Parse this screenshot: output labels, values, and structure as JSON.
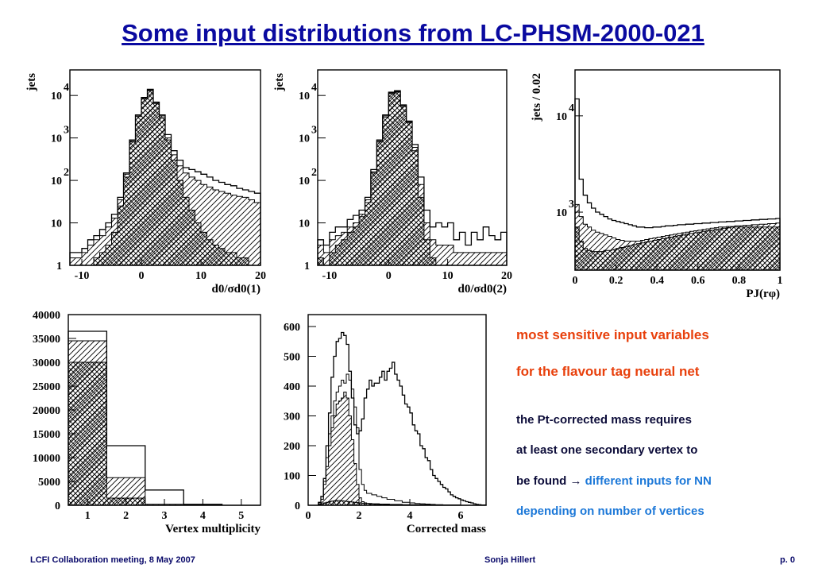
{
  "title": "Some input distributions from LC-PHSM-2000-021",
  "colors": {
    "title": "#0a0aa0",
    "highlight": "#e8400c",
    "body_text": "#0d0d3a",
    "link_blue": "#1c78d8"
  },
  "text": {
    "line1": "most sensitive input variables",
    "line2": "for the flavour tag neural net",
    "line3": "the Pt-corrected mass requires",
    "line4": "at least one secondary vertex to",
    "line5_a": "be found ",
    "line5_arrow": "→",
    "line5_b": " different inputs for NN",
    "line6": "depending on number of vertices"
  },
  "footer": {
    "left": "LCFI Collaboration meeting, 8 May 2007",
    "center": "Sonja Hillert",
    "right": "p. 0"
  },
  "chart_data": [
    {
      "type": "histogram",
      "ylabel": "jets",
      "xlabel": "d0/σd0(1)",
      "yscale": "log",
      "ylim": [
        1,
        40000
      ],
      "xlim": [
        -12,
        20
      ],
      "xticks": [
        -10,
        0,
        10,
        20
      ],
      "yticks": [
        {
          "v": 1,
          "label": "1",
          "exp": ""
        },
        {
          "v": 10,
          "label": "10",
          "exp": ""
        },
        {
          "v": 100,
          "label": "10",
          "exp": "2"
        },
        {
          "v": 1000,
          "label": "10",
          "exp": "3"
        },
        {
          "v": 10000,
          "label": "10",
          "exp": "4"
        }
      ],
      "bin_edges": [
        -12,
        -11,
        -10,
        -9,
        -8,
        -7,
        -6,
        -5,
        -4,
        -3,
        -2,
        -1,
        0,
        1,
        2,
        3,
        4,
        5,
        6,
        7,
        8,
        9,
        10,
        11,
        12,
        13,
        14,
        15,
        16,
        17,
        18,
        19,
        20
      ],
      "series": [
        {
          "style": "outline",
          "values": [
            2,
            2,
            2.5,
            4,
            5,
            7,
            10,
            16,
            40,
            150,
            900,
            3500,
            9000,
            14000,
            7000,
            3500,
            1200,
            500,
            300,
            200,
            180,
            160,
            140,
            120,
            100,
            90,
            80,
            75,
            65,
            60,
            55,
            50
          ]
        },
        {
          "style": "hatch-diag",
          "values": [
            1.5,
            1.5,
            2,
            3,
            4,
            5,
            8,
            13,
            35,
            140,
            850,
            3400,
            8800,
            13500,
            6800,
            3300,
            1000,
            400,
            220,
            150,
            120,
            100,
            80,
            70,
            60,
            55,
            50,
            45,
            42,
            40,
            35,
            30
          ]
        },
        {
          "style": "cross-hatch",
          "values": [
            1,
            1,
            1,
            1,
            1.5,
            2,
            3,
            6,
            25,
            120,
            800,
            3200,
            8500,
            13000,
            6500,
            3000,
            900,
            300,
            100,
            40,
            20,
            10,
            6,
            4,
            3,
            2.5,
            2,
            2,
            1.5,
            1.5,
            1,
            1
          ]
        }
      ]
    },
    {
      "type": "histogram",
      "ylabel": "jets",
      "xlabel": "d0/σd0(2)",
      "yscale": "log",
      "ylim": [
        1,
        40000
      ],
      "xlim": [
        -12,
        20
      ],
      "xticks": [
        -10,
        0,
        10,
        20
      ],
      "yticks": [
        {
          "v": 1,
          "label": "1",
          "exp": ""
        },
        {
          "v": 10,
          "label": "10",
          "exp": ""
        },
        {
          "v": 100,
          "label": "10",
          "exp": "2"
        },
        {
          "v": 1000,
          "label": "10",
          "exp": "3"
        },
        {
          "v": 10000,
          "label": "10",
          "exp": "4"
        }
      ],
      "bin_edges": [
        -12,
        -11,
        -10,
        -9,
        -8,
        -7,
        -6,
        -5,
        -4,
        -3,
        -2,
        -1,
        0,
        1,
        2,
        3,
        4,
        5,
        6,
        7,
        8,
        9,
        10,
        11,
        12,
        13,
        14,
        15,
        16,
        17,
        18,
        19,
        20
      ],
      "series": [
        {
          "style": "outline",
          "values": [
            4,
            3,
            6,
            8,
            8,
            12,
            15,
            20,
            40,
            180,
            900,
            3500,
            12000,
            13000,
            6000,
            2500,
            700,
            120,
            20,
            8,
            10,
            8,
            10,
            4,
            6,
            3,
            6,
            4,
            8,
            5,
            4,
            6
          ]
        },
        {
          "style": "hatch-diag",
          "values": [
            3,
            2,
            4,
            5,
            6,
            8,
            10,
            16,
            35,
            160,
            850,
            3300,
            11500,
            12500,
            5800,
            2400,
            600,
            80,
            10,
            4,
            3,
            3,
            3,
            2,
            2,
            2,
            2,
            2,
            2,
            2,
            2,
            2
          ]
        },
        {
          "style": "cross-hatch",
          "values": [
            1.5,
            1,
            2,
            3,
            4,
            6,
            8,
            14,
            30,
            150,
            800,
            3100,
            11000,
            12000,
            5500,
            2300,
            500,
            40,
            4,
            1.5,
            1,
            1,
            1,
            1,
            1,
            1,
            1,
            1,
            1,
            1,
            1,
            1
          ]
        }
      ]
    },
    {
      "type": "histogram",
      "ylabel": "jets / 0.02",
      "xlabel": "PJ(rφ)",
      "yscale": "log",
      "ylim": [
        250,
        30000
      ],
      "xlim": [
        0,
        1
      ],
      "xticks": [
        0,
        0.2,
        0.4,
        0.6,
        0.8,
        1
      ],
      "yticks": [
        {
          "v": 1000,
          "label": "10",
          "exp": "3"
        },
        {
          "v": 10000,
          "label": "10",
          "exp": "4"
        }
      ],
      "bin_edges": [
        0,
        0.02,
        0.04,
        0.06,
        0.08,
        0.1,
        0.12,
        0.14,
        0.16,
        0.18,
        0.2,
        0.22,
        0.24,
        0.26,
        0.28,
        0.3,
        0.32,
        0.34,
        0.36,
        0.38,
        0.4,
        0.42,
        0.44,
        0.46,
        0.48,
        0.5,
        0.52,
        0.54,
        0.56,
        0.58,
        0.6,
        0.62,
        0.64,
        0.66,
        0.68,
        0.7,
        0.72,
        0.74,
        0.76,
        0.78,
        0.8,
        0.82,
        0.84,
        0.86,
        0.88,
        0.9,
        0.92,
        0.94,
        0.96,
        0.98,
        1.0
      ],
      "series": [
        {
          "style": "outline",
          "values": [
            15000,
            2200,
            1500,
            1250,
            1100,
            1000,
            950,
            900,
            850,
            820,
            800,
            780,
            760,
            740,
            720,
            700,
            700,
            690,
            690,
            700,
            700,
            710,
            720,
            720,
            730,
            740,
            740,
            750,
            750,
            760,
            760,
            770,
            770,
            780,
            780,
            790,
            790,
            800,
            800,
            810,
            810,
            820,
            820,
            830,
            830,
            840,
            840,
            850,
            850,
            860
          ]
        },
        {
          "style": "hatch-diag",
          "values": [
            1200,
            900,
            750,
            700,
            650,
            620,
            600,
            580,
            560,
            540,
            520,
            510,
            500,
            500,
            500,
            500,
            510,
            520,
            530,
            540,
            550,
            560,
            570,
            580,
            590,
            600,
            610,
            620,
            630,
            640,
            650,
            660,
            670,
            680,
            690,
            700,
            700,
            710,
            710,
            720,
            720,
            730,
            730,
            740,
            740,
            750,
            750,
            760,
            760,
            770
          ]
        },
        {
          "style": "cross-hatch",
          "values": [
            700,
            500,
            420,
            400,
            390,
            390,
            390,
            400,
            400,
            410,
            420,
            430,
            440,
            450,
            460,
            470,
            480,
            490,
            500,
            510,
            520,
            530,
            540,
            550,
            560,
            570,
            580,
            590,
            600,
            610,
            620,
            630,
            640,
            650,
            660,
            670,
            680,
            690,
            700,
            700,
            700,
            700,
            700,
            700,
            700,
            700,
            700,
            700,
            700,
            700
          ]
        }
      ]
    },
    {
      "type": "histogram",
      "xlabel": "Vertex multiplicity",
      "ylabel": "",
      "yscale": "linear",
      "ylim": [
        0,
        40000
      ],
      "xlim": [
        0.5,
        5.5
      ],
      "xticks": [
        1,
        2,
        3,
        4,
        5
      ],
      "yticks": [
        {
          "v": 0,
          "label": "0"
        },
        {
          "v": 5000,
          "label": "5000"
        },
        {
          "v": 10000,
          "label": "10000"
        },
        {
          "v": 15000,
          "label": "15000"
        },
        {
          "v": 20000,
          "label": "20000"
        },
        {
          "v": 25000,
          "label": "25000"
        },
        {
          "v": 30000,
          "label": "30000"
        },
        {
          "v": 35000,
          "label": "35000"
        },
        {
          "v": 40000,
          "label": "40000"
        }
      ],
      "bin_edges": [
        0.5,
        1.5,
        2.5,
        3.5,
        4.5,
        5.5
      ],
      "series": [
        {
          "style": "outline",
          "values": [
            36500,
            12500,
            3200,
            200,
            0
          ]
        },
        {
          "style": "hatch-diag",
          "values": [
            34500,
            5800,
            200,
            0,
            0
          ]
        },
        {
          "style": "cross-hatch",
          "values": [
            30000,
            1500,
            0,
            0,
            0
          ]
        }
      ]
    },
    {
      "type": "histogram",
      "xlabel": "Corrected mass",
      "ylabel": "",
      "yscale": "linear",
      "ylim": [
        0,
        640
      ],
      "xlim": [
        0,
        7
      ],
      "xticks": [
        0,
        2,
        4,
        6
      ],
      "yticks": [
        {
          "v": 0,
          "label": "0"
        },
        {
          "v": 100,
          "label": "100"
        },
        {
          "v": 200,
          "label": "200"
        },
        {
          "v": 300,
          "label": "300"
        },
        {
          "v": 400,
          "label": "400"
        },
        {
          "v": 500,
          "label": "500"
        },
        {
          "v": 600,
          "label": "600"
        }
      ],
      "bin_edges": [
        0,
        0.1,
        0.2,
        0.3,
        0.4,
        0.5,
        0.6,
        0.7,
        0.8,
        0.9,
        1.0,
        1.1,
        1.2,
        1.3,
        1.4,
        1.5,
        1.6,
        1.7,
        1.8,
        1.9,
        2.0,
        2.1,
        2.2,
        2.3,
        2.4,
        2.5,
        2.6,
        2.7,
        2.8,
        2.9,
        3.0,
        3.1,
        3.2,
        3.3,
        3.4,
        3.5,
        3.6,
        3.7,
        3.8,
        3.9,
        4.0,
        4.1,
        4.2,
        4.3,
        4.4,
        4.5,
        4.6,
        4.7,
        4.8,
        4.9,
        5.0,
        5.1,
        5.2,
        5.3,
        5.4,
        5.5,
        5.6,
        5.7,
        5.8,
        5.9,
        6.0,
        6.1,
        6.2,
        6.3,
        6.4,
        6.5,
        6.6,
        6.7,
        6.8,
        6.9,
        7.0
      ],
      "series": [
        {
          "style": "outline",
          "values": [
            0,
            0,
            0,
            0,
            10,
            30,
            90,
            200,
            310,
            430,
            500,
            550,
            560,
            580,
            570,
            540,
            450,
            360,
            270,
            240,
            250,
            290,
            360,
            390,
            420,
            400,
            410,
            410,
            430,
            450,
            420,
            450,
            460,
            480,
            440,
            420,
            400,
            370,
            340,
            330,
            310,
            270,
            250,
            240,
            200,
            190,
            160,
            150,
            120,
            100,
            90,
            80,
            70,
            60,
            55,
            45,
            35,
            30,
            25,
            22,
            18,
            15,
            12,
            10,
            8,
            5,
            3,
            2,
            1,
            1
          ]
        },
        {
          "style": "outline-thin",
          "values": [
            0,
            0,
            0,
            0,
            5,
            20,
            80,
            160,
            240,
            300,
            350,
            380,
            400,
            420,
            410,
            440,
            420,
            390,
            330,
            260,
            120,
            70,
            50,
            40,
            40,
            35,
            35,
            30,
            30,
            25,
            25,
            20,
            20,
            20,
            15,
            15,
            15,
            10,
            10,
            10,
            8,
            8,
            6,
            6,
            5,
            5,
            4,
            4,
            3,
            3,
            2,
            2,
            2,
            1,
            1,
            1,
            1,
            1,
            1,
            1,
            0,
            0,
            0,
            0,
            0,
            0,
            0,
            0,
            0,
            0
          ]
        },
        {
          "style": "hatch-diag",
          "values": [
            0,
            0,
            0,
            0,
            5,
            20,
            70,
            130,
            200,
            260,
            300,
            340,
            350,
            360,
            380,
            360,
            300,
            220,
            140,
            70,
            25,
            12,
            8,
            6,
            5,
            4,
            4,
            3,
            3,
            3,
            2,
            2,
            2,
            2,
            2,
            1,
            1,
            1,
            1,
            1,
            1,
            1,
            1,
            1,
            1,
            1,
            0,
            0,
            0,
            0,
            0,
            0,
            0,
            0,
            0,
            0,
            0,
            0,
            0,
            0,
            0,
            0,
            0,
            0,
            0,
            0,
            0,
            0,
            0,
            0
          ]
        },
        {
          "style": "cross-hatch",
          "values": [
            0,
            0,
            0,
            0,
            2,
            5,
            8,
            10,
            12,
            14,
            15,
            16,
            16,
            15,
            14,
            13,
            12,
            11,
            10,
            9,
            8,
            7,
            7,
            6,
            6,
            5,
            5,
            5,
            4,
            4,
            4,
            4,
            3,
            3,
            3,
            3,
            3,
            2,
            2,
            2,
            2,
            2,
            2,
            2,
            2,
            2,
            1,
            1,
            1,
            1,
            1,
            1,
            1,
            1,
            1,
            1,
            1,
            1,
            1,
            1,
            0,
            0,
            0,
            0,
            0,
            0,
            0,
            0,
            0,
            0
          ]
        }
      ]
    }
  ]
}
